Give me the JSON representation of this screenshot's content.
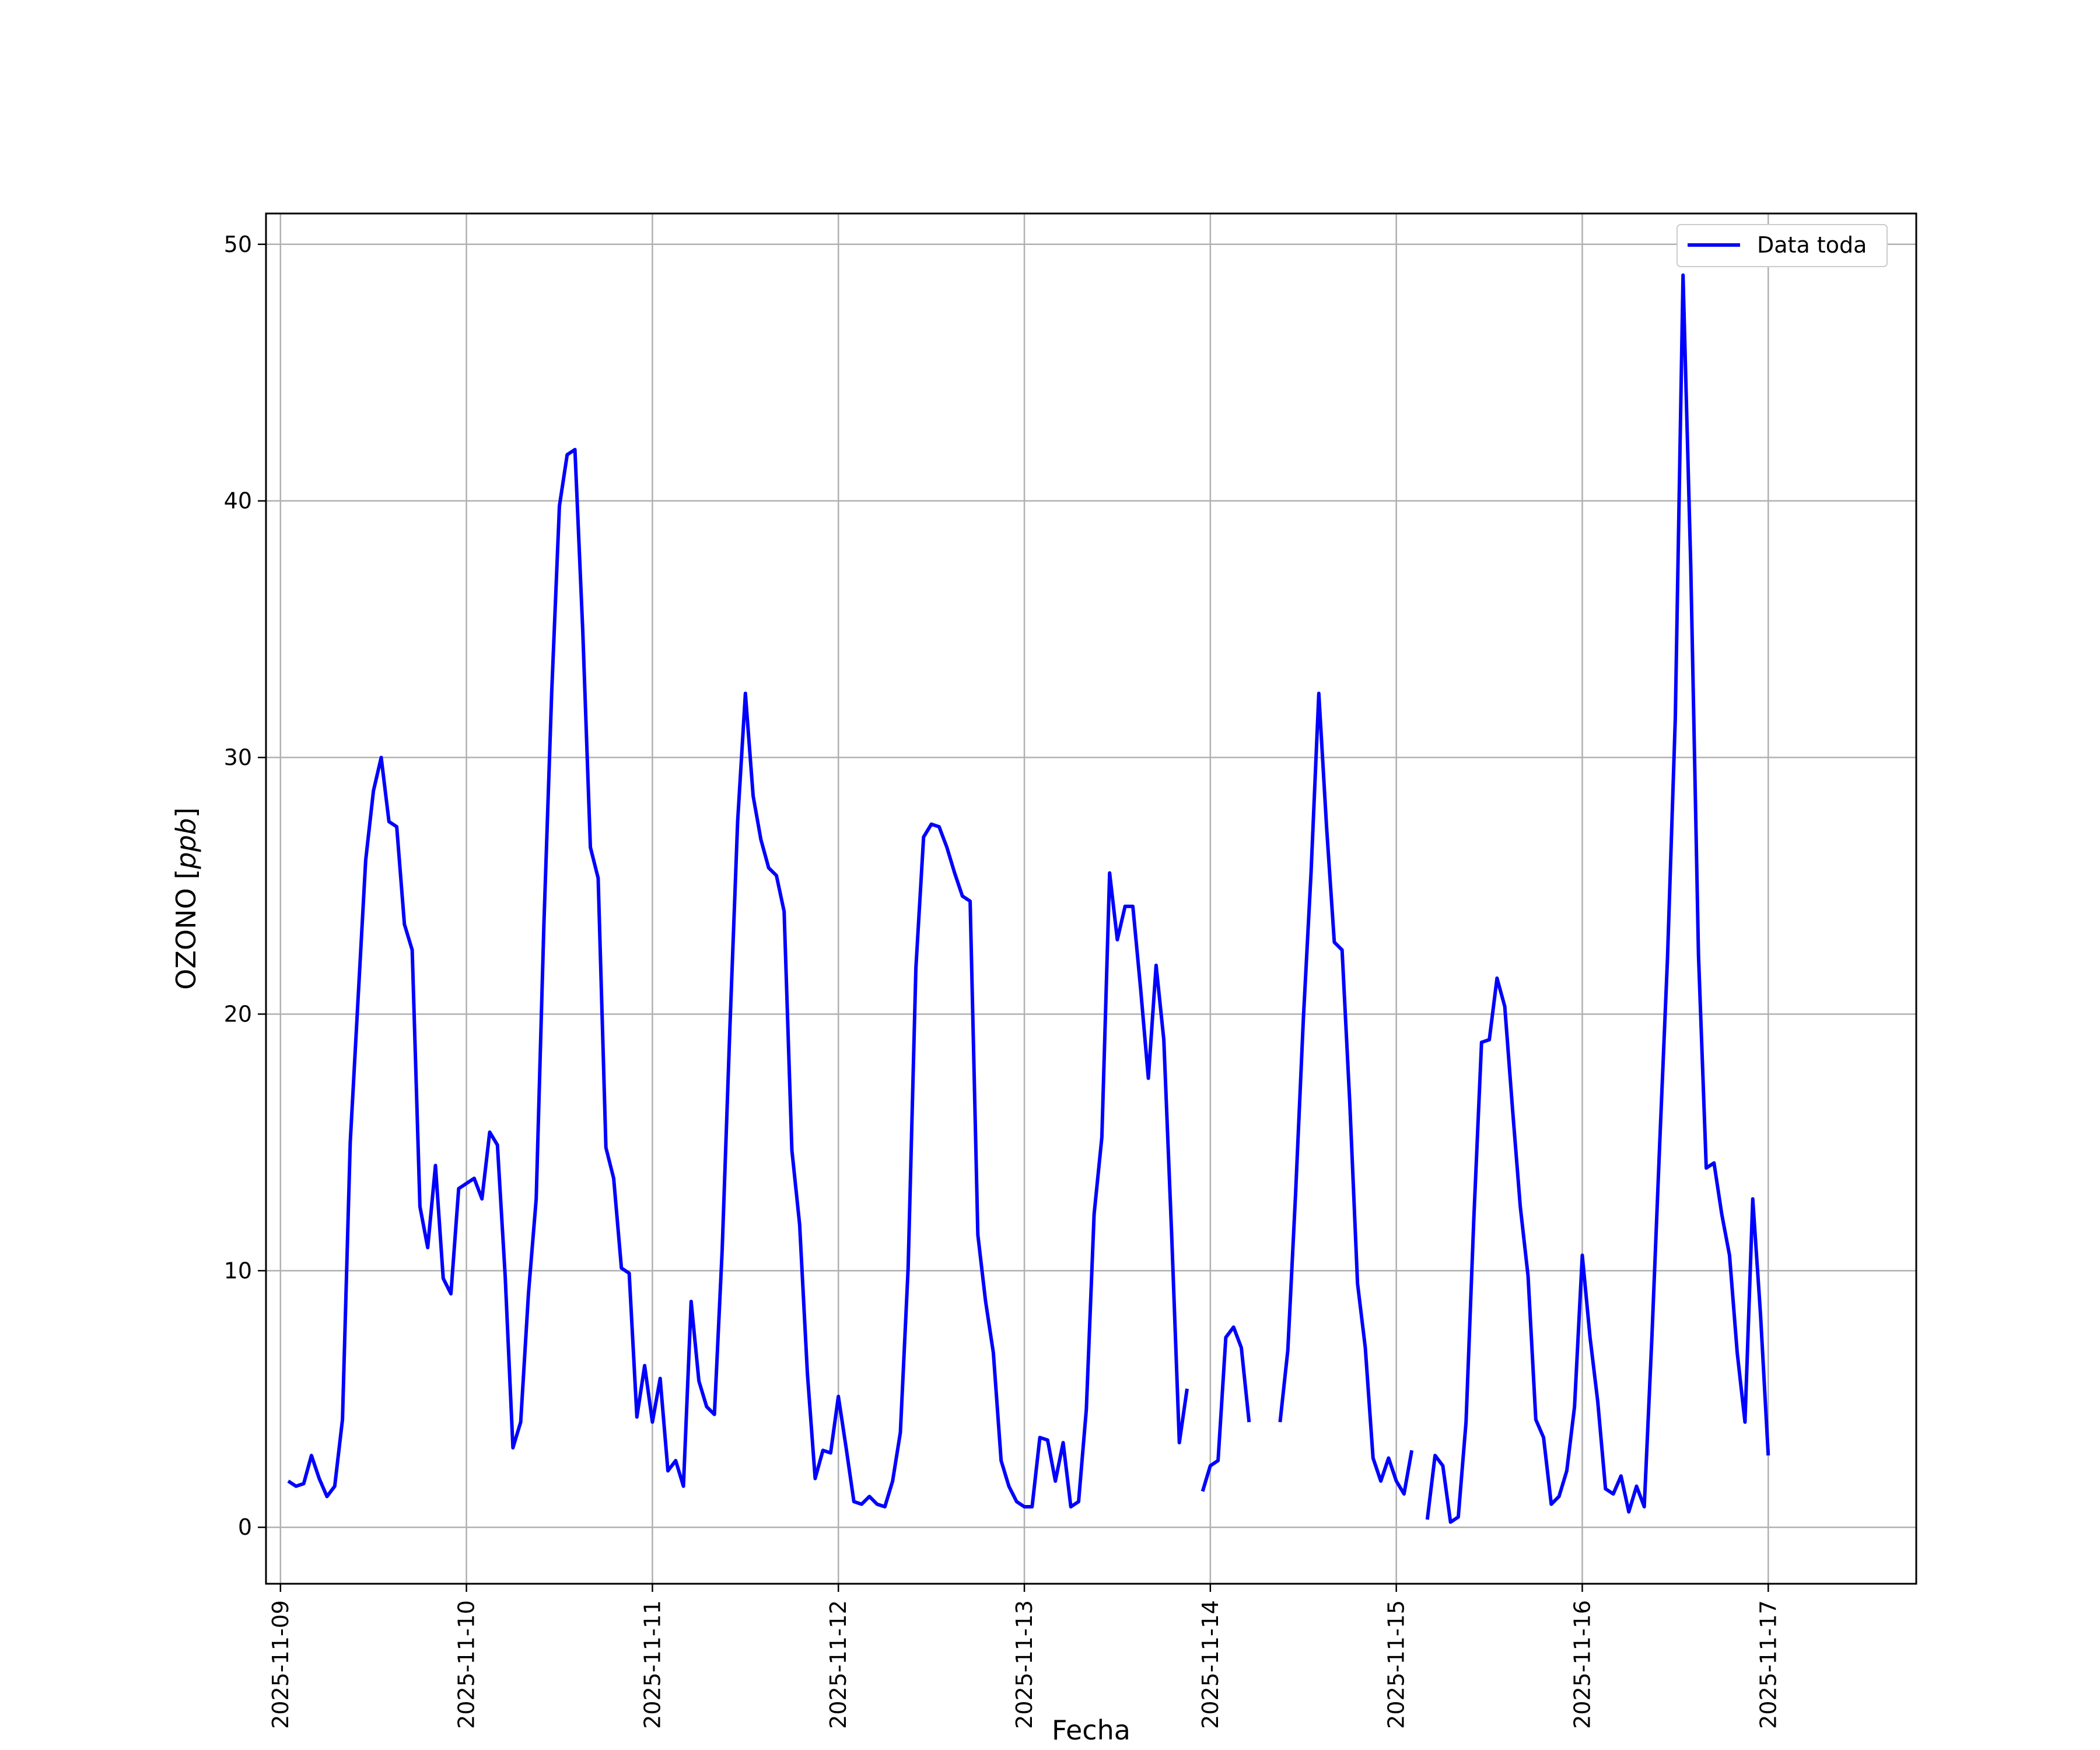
{
  "chart_data": {
    "type": "line",
    "title": "",
    "xlabel": "Fecha",
    "ylabel": "OZONO [ppb]",
    "ylabel_parts": {
      "main": "OZONO ",
      "open": "[",
      "unit": "ppb",
      "close": "]"
    },
    "x_ticks": [
      "2025-11-09",
      "2025-11-10",
      "2025-11-11",
      "2025-11-12",
      "2025-11-13",
      "2025-11-14",
      "2025-11-15",
      "2025-11-16",
      "2025-11-17"
    ],
    "y_ticks": [
      "0",
      "10",
      "20",
      "30",
      "40",
      "50"
    ],
    "xlim": [
      "2025-11-08T22:08",
      "2025-11-17T19:06"
    ],
    "ylim": [
      -2.2,
      51.2
    ],
    "grid": true,
    "legend": {
      "position": "top-right",
      "entries": [
        "Data toda"
      ]
    },
    "colors": {
      "series": "#0000ff",
      "grid": "#b0b0b0",
      "frame": "#000000"
    },
    "series": [
      {
        "name": "Data toda",
        "points": [
          [
            "2025-11-09 01:00",
            1.8
          ],
          [
            "2025-11-09 02:00",
            1.6
          ],
          [
            "2025-11-09 03:00",
            1.7
          ],
          [
            "2025-11-09 04:00",
            2.8
          ],
          [
            "2025-11-09 05:00",
            1.9
          ],
          [
            "2025-11-09 06:00",
            1.2
          ],
          [
            "2025-11-09 07:00",
            1.6
          ],
          [
            "2025-11-09 08:00",
            4.2
          ],
          [
            "2025-11-09 09:00",
            15.0
          ],
          [
            "2025-11-09 10:00",
            20.5
          ],
          [
            "2025-11-09 11:00",
            26.0
          ],
          [
            "2025-11-09 12:00",
            28.7
          ],
          [
            "2025-11-09 13:00",
            30.0
          ],
          [
            "2025-11-09 14:00",
            27.5
          ],
          [
            "2025-11-09 15:00",
            27.3
          ],
          [
            "2025-11-09 16:00",
            23.5
          ],
          [
            "2025-11-09 17:00",
            22.5
          ],
          [
            "2025-11-09 18:00",
            12.5
          ],
          [
            "2025-11-09 19:00",
            10.9
          ],
          [
            "2025-11-09 20:00",
            14.1
          ],
          [
            "2025-11-09 21:00",
            9.7
          ],
          [
            "2025-11-09 22:00",
            9.1
          ],
          [
            "2025-11-09 23:00",
            13.2
          ],
          [
            "2025-11-10 00:00",
            13.4
          ],
          [
            "2025-11-10 01:00",
            13.6
          ],
          [
            "2025-11-10 02:00",
            12.8
          ],
          [
            "2025-11-10 03:00",
            15.4
          ],
          [
            "2025-11-10 04:00",
            14.9
          ],
          [
            "2025-11-10 05:00",
            9.8
          ],
          [
            "2025-11-10 06:00",
            3.1
          ],
          [
            "2025-11-10 07:00",
            4.1
          ],
          [
            "2025-11-10 08:00",
            9.1
          ],
          [
            "2025-11-10 09:00",
            12.8
          ],
          [
            "2025-11-10 10:00",
            23.5
          ],
          [
            "2025-11-10 11:00",
            32.5
          ],
          [
            "2025-11-10 12:00",
            39.8
          ],
          [
            "2025-11-10 13:00",
            41.8
          ],
          [
            "2025-11-10 14:00",
            42.0
          ],
          [
            "2025-11-10 15:00",
            35.0
          ],
          [
            "2025-11-10 16:00",
            26.5
          ],
          [
            "2025-11-10 17:00",
            25.3
          ],
          [
            "2025-11-10 18:00",
            14.8
          ],
          [
            "2025-11-10 19:00",
            13.6
          ],
          [
            "2025-11-10 20:00",
            10.1
          ],
          [
            "2025-11-10 21:00",
            9.9
          ],
          [
            "2025-11-10 22:00",
            4.3
          ],
          [
            "2025-11-10 23:00",
            6.3
          ],
          [
            "2025-11-11 00:00",
            4.1
          ],
          [
            "2025-11-11 01:00",
            5.8
          ],
          [
            "2025-11-11 02:00",
            2.2
          ],
          [
            "2025-11-11 03:00",
            2.6
          ],
          [
            "2025-11-11 04:00",
            1.6
          ],
          [
            "2025-11-11 05:00",
            8.8
          ],
          [
            "2025-11-11 06:00",
            5.7
          ],
          [
            "2025-11-11 07:00",
            4.7
          ],
          [
            "2025-11-11 08:00",
            4.4
          ],
          [
            "2025-11-11 09:00",
            10.8
          ],
          [
            "2025-11-11 10:00",
            19.5
          ],
          [
            "2025-11-11 11:00",
            27.5
          ],
          [
            "2025-11-11 12:00",
            32.5
          ],
          [
            "2025-11-11 13:00",
            28.5
          ],
          [
            "2025-11-11 14:00",
            26.8
          ],
          [
            "2025-11-11 15:00",
            25.7
          ],
          [
            "2025-11-11 16:00",
            25.4
          ],
          [
            "2025-11-11 17:00",
            24.0
          ],
          [
            "2025-11-11 18:00",
            14.7
          ],
          [
            "2025-11-11 19:00",
            11.8
          ],
          [
            "2025-11-11 20:00",
            6.0
          ],
          [
            "2025-11-11 21:00",
            1.9
          ],
          [
            "2025-11-11 22:00",
            3.0
          ],
          [
            "2025-11-11 23:00",
            2.9
          ],
          [
            "2025-11-12 00:00",
            5.1
          ],
          [
            "2025-11-12 01:00",
            3.1
          ],
          [
            "2025-11-12 02:00",
            1.0
          ],
          [
            "2025-11-12 03:00",
            0.9
          ],
          [
            "2025-11-12 04:00",
            1.2
          ],
          [
            "2025-11-12 05:00",
            0.9
          ],
          [
            "2025-11-12 06:00",
            0.8
          ],
          [
            "2025-11-12 07:00",
            1.8
          ],
          [
            "2025-11-12 08:00",
            3.7
          ],
          [
            "2025-11-12 09:00",
            10.1
          ],
          [
            "2025-11-12 10:00",
            21.8
          ],
          [
            "2025-11-12 11:00",
            26.9
          ],
          [
            "2025-11-12 12:00",
            27.4
          ],
          [
            "2025-11-12 13:00",
            27.3
          ],
          [
            "2025-11-12 14:00",
            26.5
          ],
          [
            "2025-11-12 15:00",
            25.5
          ],
          [
            "2025-11-12 16:00",
            24.6
          ],
          [
            "2025-11-12 17:00",
            24.4
          ],
          [
            "2025-11-12 18:00",
            11.4
          ],
          [
            "2025-11-12 19:00",
            8.8
          ],
          [
            "2025-11-12 20:00",
            6.8
          ],
          [
            "2025-11-12 21:00",
            2.6
          ],
          [
            "2025-11-12 22:00",
            1.6
          ],
          [
            "2025-11-12 23:00",
            1.0
          ],
          [
            "2025-11-13 00:00",
            0.8
          ],
          [
            "2025-11-13 01:00",
            0.8
          ],
          [
            "2025-11-13 02:00",
            3.5
          ],
          [
            "2025-11-13 03:00",
            3.4
          ],
          [
            "2025-11-13 04:00",
            1.8
          ],
          [
            "2025-11-13 05:00",
            3.3
          ],
          [
            "2025-11-13 06:00",
            0.8
          ],
          [
            "2025-11-13 07:00",
            1.0
          ],
          [
            "2025-11-13 08:00",
            4.6
          ],
          [
            "2025-11-13 09:00",
            12.2
          ],
          [
            "2025-11-13 10:00",
            15.2
          ],
          [
            "2025-11-13 11:00",
            25.5
          ],
          [
            "2025-11-13 12:00",
            22.9
          ],
          [
            "2025-11-13 13:00",
            24.2
          ],
          [
            "2025-11-13 14:00",
            24.2
          ],
          [
            "2025-11-13 15:00",
            21.0
          ],
          [
            "2025-11-13 16:00",
            17.5
          ],
          [
            "2025-11-13 17:00",
            21.9
          ],
          [
            "2025-11-13 18:00",
            19.0
          ],
          [
            "2025-11-13 19:00",
            11.5
          ],
          [
            "2025-11-13 20:00",
            3.3
          ],
          [
            "2025-11-13 21:00",
            5.4
          ],
          null,
          [
            "2025-11-13 23:00",
            1.4
          ],
          [
            "2025-11-14 00:00",
            2.4
          ],
          [
            "2025-11-14 01:00",
            2.6
          ],
          [
            "2025-11-14 02:00",
            7.4
          ],
          [
            "2025-11-14 03:00",
            7.8
          ],
          [
            "2025-11-14 04:00",
            7.0
          ],
          [
            "2025-11-14 05:00",
            4.1
          ],
          null,
          [
            "2025-11-14 09:00",
            4.1
          ],
          [
            "2025-11-14 10:00",
            6.9
          ],
          [
            "2025-11-14 11:00",
            13.0
          ],
          [
            "2025-11-14 12:00",
            19.8
          ],
          [
            "2025-11-14 13:00",
            25.5
          ],
          [
            "2025-11-14 14:00",
            32.5
          ],
          [
            "2025-11-14 15:00",
            27.3
          ],
          [
            "2025-11-14 16:00",
            22.8
          ],
          [
            "2025-11-14 17:00",
            22.5
          ],
          [
            "2025-11-14 18:00",
            16.5
          ],
          [
            "2025-11-14 19:00",
            9.5
          ],
          [
            "2025-11-14 20:00",
            7.0
          ],
          [
            "2025-11-14 21:00",
            2.7
          ],
          [
            "2025-11-14 22:00",
            1.8
          ],
          [
            "2025-11-14 23:00",
            2.7
          ],
          [
            "2025-11-15 00:00",
            1.8
          ],
          [
            "2025-11-15 01:00",
            1.3
          ],
          [
            "2025-11-15 02:00",
            3.0
          ],
          null,
          [
            "2025-11-15 04:00",
            0.3
          ],
          [
            "2025-11-15 05:00",
            2.8
          ],
          [
            "2025-11-15 06:00",
            2.4
          ],
          [
            "2025-11-15 07:00",
            0.2
          ],
          [
            "2025-11-15 08:00",
            0.4
          ],
          [
            "2025-11-15 09:00",
            4.1
          ],
          [
            "2025-11-15 10:00",
            12.0
          ],
          [
            "2025-11-15 11:00",
            18.9
          ],
          [
            "2025-11-15 12:00",
            19.0
          ],
          [
            "2025-11-15 13:00",
            21.4
          ],
          [
            "2025-11-15 14:00",
            20.3
          ],
          [
            "2025-11-15 15:00",
            16.3
          ],
          [
            "2025-11-15 16:00",
            12.5
          ],
          [
            "2025-11-15 17:00",
            9.8
          ],
          [
            "2025-11-15 18:00",
            4.2
          ],
          [
            "2025-11-15 19:00",
            3.5
          ],
          [
            "2025-11-15 20:00",
            0.9
          ],
          [
            "2025-11-15 21:00",
            1.2
          ],
          [
            "2025-11-15 22:00",
            2.2
          ],
          [
            "2025-11-15 23:00",
            4.7
          ],
          [
            "2025-11-16 00:00",
            10.6
          ],
          [
            "2025-11-16 01:00",
            7.4
          ],
          [
            "2025-11-16 02:00",
            4.9
          ],
          [
            "2025-11-16 03:00",
            1.5
          ],
          [
            "2025-11-16 04:00",
            1.3
          ],
          [
            "2025-11-16 05:00",
            2.0
          ],
          [
            "2025-11-16 06:00",
            0.6
          ],
          [
            "2025-11-16 07:00",
            1.6
          ],
          [
            "2025-11-16 08:00",
            0.8
          ],
          [
            "2025-11-16 09:00",
            7.5
          ],
          [
            "2025-11-16 10:00",
            15.0
          ],
          [
            "2025-11-16 11:00",
            22.2
          ],
          [
            "2025-11-16 12:00",
            31.5
          ],
          [
            "2025-11-16 13:00",
            48.8
          ],
          [
            "2025-11-16 14:00",
            37.5
          ],
          [
            "2025-11-16 15:00",
            22.3
          ],
          [
            "2025-11-16 16:00",
            14.0
          ],
          [
            "2025-11-16 17:00",
            14.2
          ],
          [
            "2025-11-16 18:00",
            12.2
          ],
          [
            "2025-11-16 19:00",
            10.6
          ],
          [
            "2025-11-16 20:00",
            6.8
          ],
          [
            "2025-11-16 21:00",
            4.1
          ],
          [
            "2025-11-16 22:00",
            12.8
          ],
          [
            "2025-11-16 23:00",
            8.3
          ],
          [
            "2025-11-17 00:00",
            2.8
          ]
        ]
      }
    ]
  }
}
